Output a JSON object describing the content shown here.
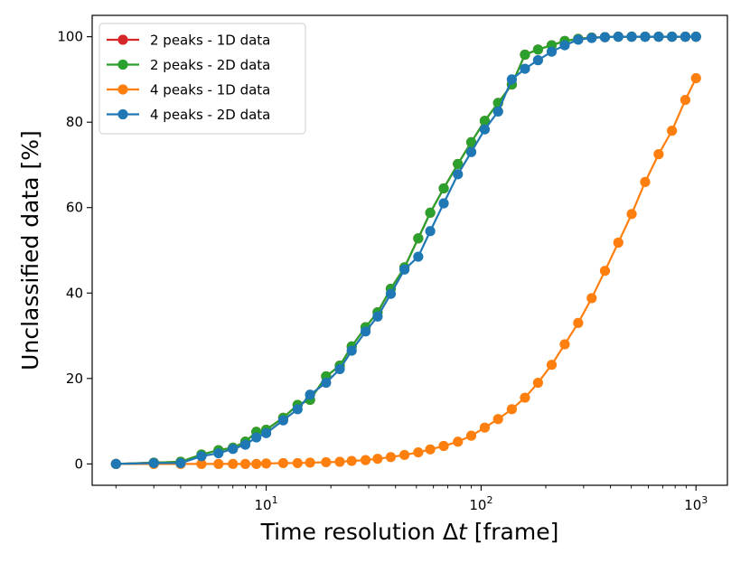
{
  "chart_data": {
    "type": "line",
    "title": "",
    "xlabel": "Time resolution Δt [frame]",
    "xlabel_prefix": "Time resolution Δ",
    "xlabel_var": "t",
    "xlabel_suffix": " [frame]",
    "ylabel": "Unclassified data [%]",
    "xscale": "log",
    "xlim": [
      1.55,
      1400
    ],
    "ylim": [
      -5,
      105
    ],
    "grid": false,
    "legend_position": "top-left",
    "x_ticks": [
      {
        "value": 10,
        "base": "10",
        "exp": "1"
      },
      {
        "value": 100,
        "base": "10",
        "exp": "2"
      },
      {
        "value": 1000,
        "base": "10",
        "exp": "3"
      }
    ],
    "y_ticks": [
      0,
      20,
      40,
      60,
      80,
      100
    ],
    "series": [
      {
        "name": "2 peaks - 1D data",
        "color": "#d62728",
        "x": [
          2,
          3,
          4,
          5,
          6,
          7,
          8,
          9,
          10,
          12,
          14,
          16,
          19,
          22,
          25,
          29,
          33,
          38,
          44,
          51,
          58,
          67,
          78,
          90,
          104,
          120,
          139,
          160,
          184,
          213,
          245,
          283,
          327,
          377,
          435,
          502,
          580,
          670,
          773,
          892,
          1000
        ],
        "values": [
          0,
          0.3,
          0.5,
          2.2,
          3.2,
          3.8,
          5.2,
          7.5,
          8.0,
          10.8,
          13.8,
          15.0,
          20.5,
          23.0,
          27.5,
          32.0,
          35.5,
          41.0,
          46.0,
          52.8,
          58.8,
          64.5,
          70.2,
          75.3,
          80.3,
          84.5,
          88.8,
          95.8,
          97.0,
          98.0,
          99.0,
          99.5,
          99.8,
          99.9,
          100,
          100,
          100,
          100,
          100,
          100,
          100
        ]
      },
      {
        "name": "2 peaks - 2D data",
        "color": "#2ca02c",
        "x": [
          2,
          3,
          4,
          5,
          6,
          7,
          8,
          9,
          10,
          12,
          14,
          16,
          19,
          22,
          25,
          29,
          33,
          38,
          44,
          51,
          58,
          67,
          78,
          90,
          104,
          120,
          139,
          160,
          184,
          213,
          245,
          283,
          327,
          377,
          435,
          502,
          580,
          670,
          773,
          892,
          1000
        ],
        "values": [
          0,
          0.3,
          0.5,
          2.2,
          3.2,
          3.8,
          5.2,
          7.5,
          8.0,
          10.8,
          13.8,
          15.0,
          20.5,
          23.0,
          27.5,
          32.0,
          35.5,
          41.0,
          46.0,
          52.8,
          58.8,
          64.5,
          70.2,
          75.3,
          80.3,
          84.5,
          88.8,
          95.8,
          97.0,
          98.0,
          99.0,
          99.5,
          99.8,
          99.9,
          100,
          100,
          100,
          100,
          100,
          100,
          100
        ]
      },
      {
        "name": "4 peaks - 1D data",
        "color": "#ff7f0e",
        "x": [
          2,
          3,
          4,
          5,
          6,
          7,
          8,
          9,
          10,
          12,
          14,
          16,
          19,
          22,
          25,
          29,
          33,
          38,
          44,
          51,
          58,
          67,
          78,
          90,
          104,
          120,
          139,
          160,
          184,
          213,
          245,
          283,
          327,
          377,
          435,
          502,
          580,
          670,
          773,
          892,
          1000
        ],
        "values": [
          0,
          0,
          0,
          0,
          0,
          0,
          0,
          0,
          0.1,
          0.2,
          0.2,
          0.3,
          0.4,
          0.5,
          0.7,
          0.9,
          1.2,
          1.6,
          2.1,
          2.7,
          3.4,
          4.2,
          5.2,
          6.6,
          8.5,
          10.5,
          12.8,
          15.5,
          19.0,
          23.2,
          28.0,
          33.0,
          38.8,
          45.2,
          51.8,
          58.5,
          66.0,
          72.5,
          78.0,
          85.2,
          90.3
        ]
      },
      {
        "name": "4 peaks - 2D data",
        "color": "#1f77b4",
        "x": [
          2,
          3,
          4,
          5,
          6,
          7,
          8,
          9,
          10,
          12,
          14,
          16,
          19,
          22,
          25,
          29,
          33,
          38,
          44,
          51,
          58,
          67,
          78,
          90,
          104,
          120,
          139,
          160,
          184,
          213,
          245,
          283,
          327,
          377,
          435,
          502,
          580,
          670,
          773,
          892,
          1000
        ],
        "values": [
          0,
          0.2,
          0.2,
          1.8,
          2.5,
          3.5,
          4.5,
          6.2,
          7.2,
          10.2,
          12.8,
          16.2,
          19.0,
          22.2,
          26.5,
          31.0,
          34.5,
          39.8,
          45.5,
          48.5,
          54.5,
          61.0,
          67.8,
          73.0,
          78.3,
          82.5,
          90.0,
          92.5,
          94.5,
          96.5,
          98.0,
          99.3,
          99.7,
          99.9,
          100,
          100,
          100,
          100,
          100,
          100,
          100
        ]
      }
    ]
  }
}
